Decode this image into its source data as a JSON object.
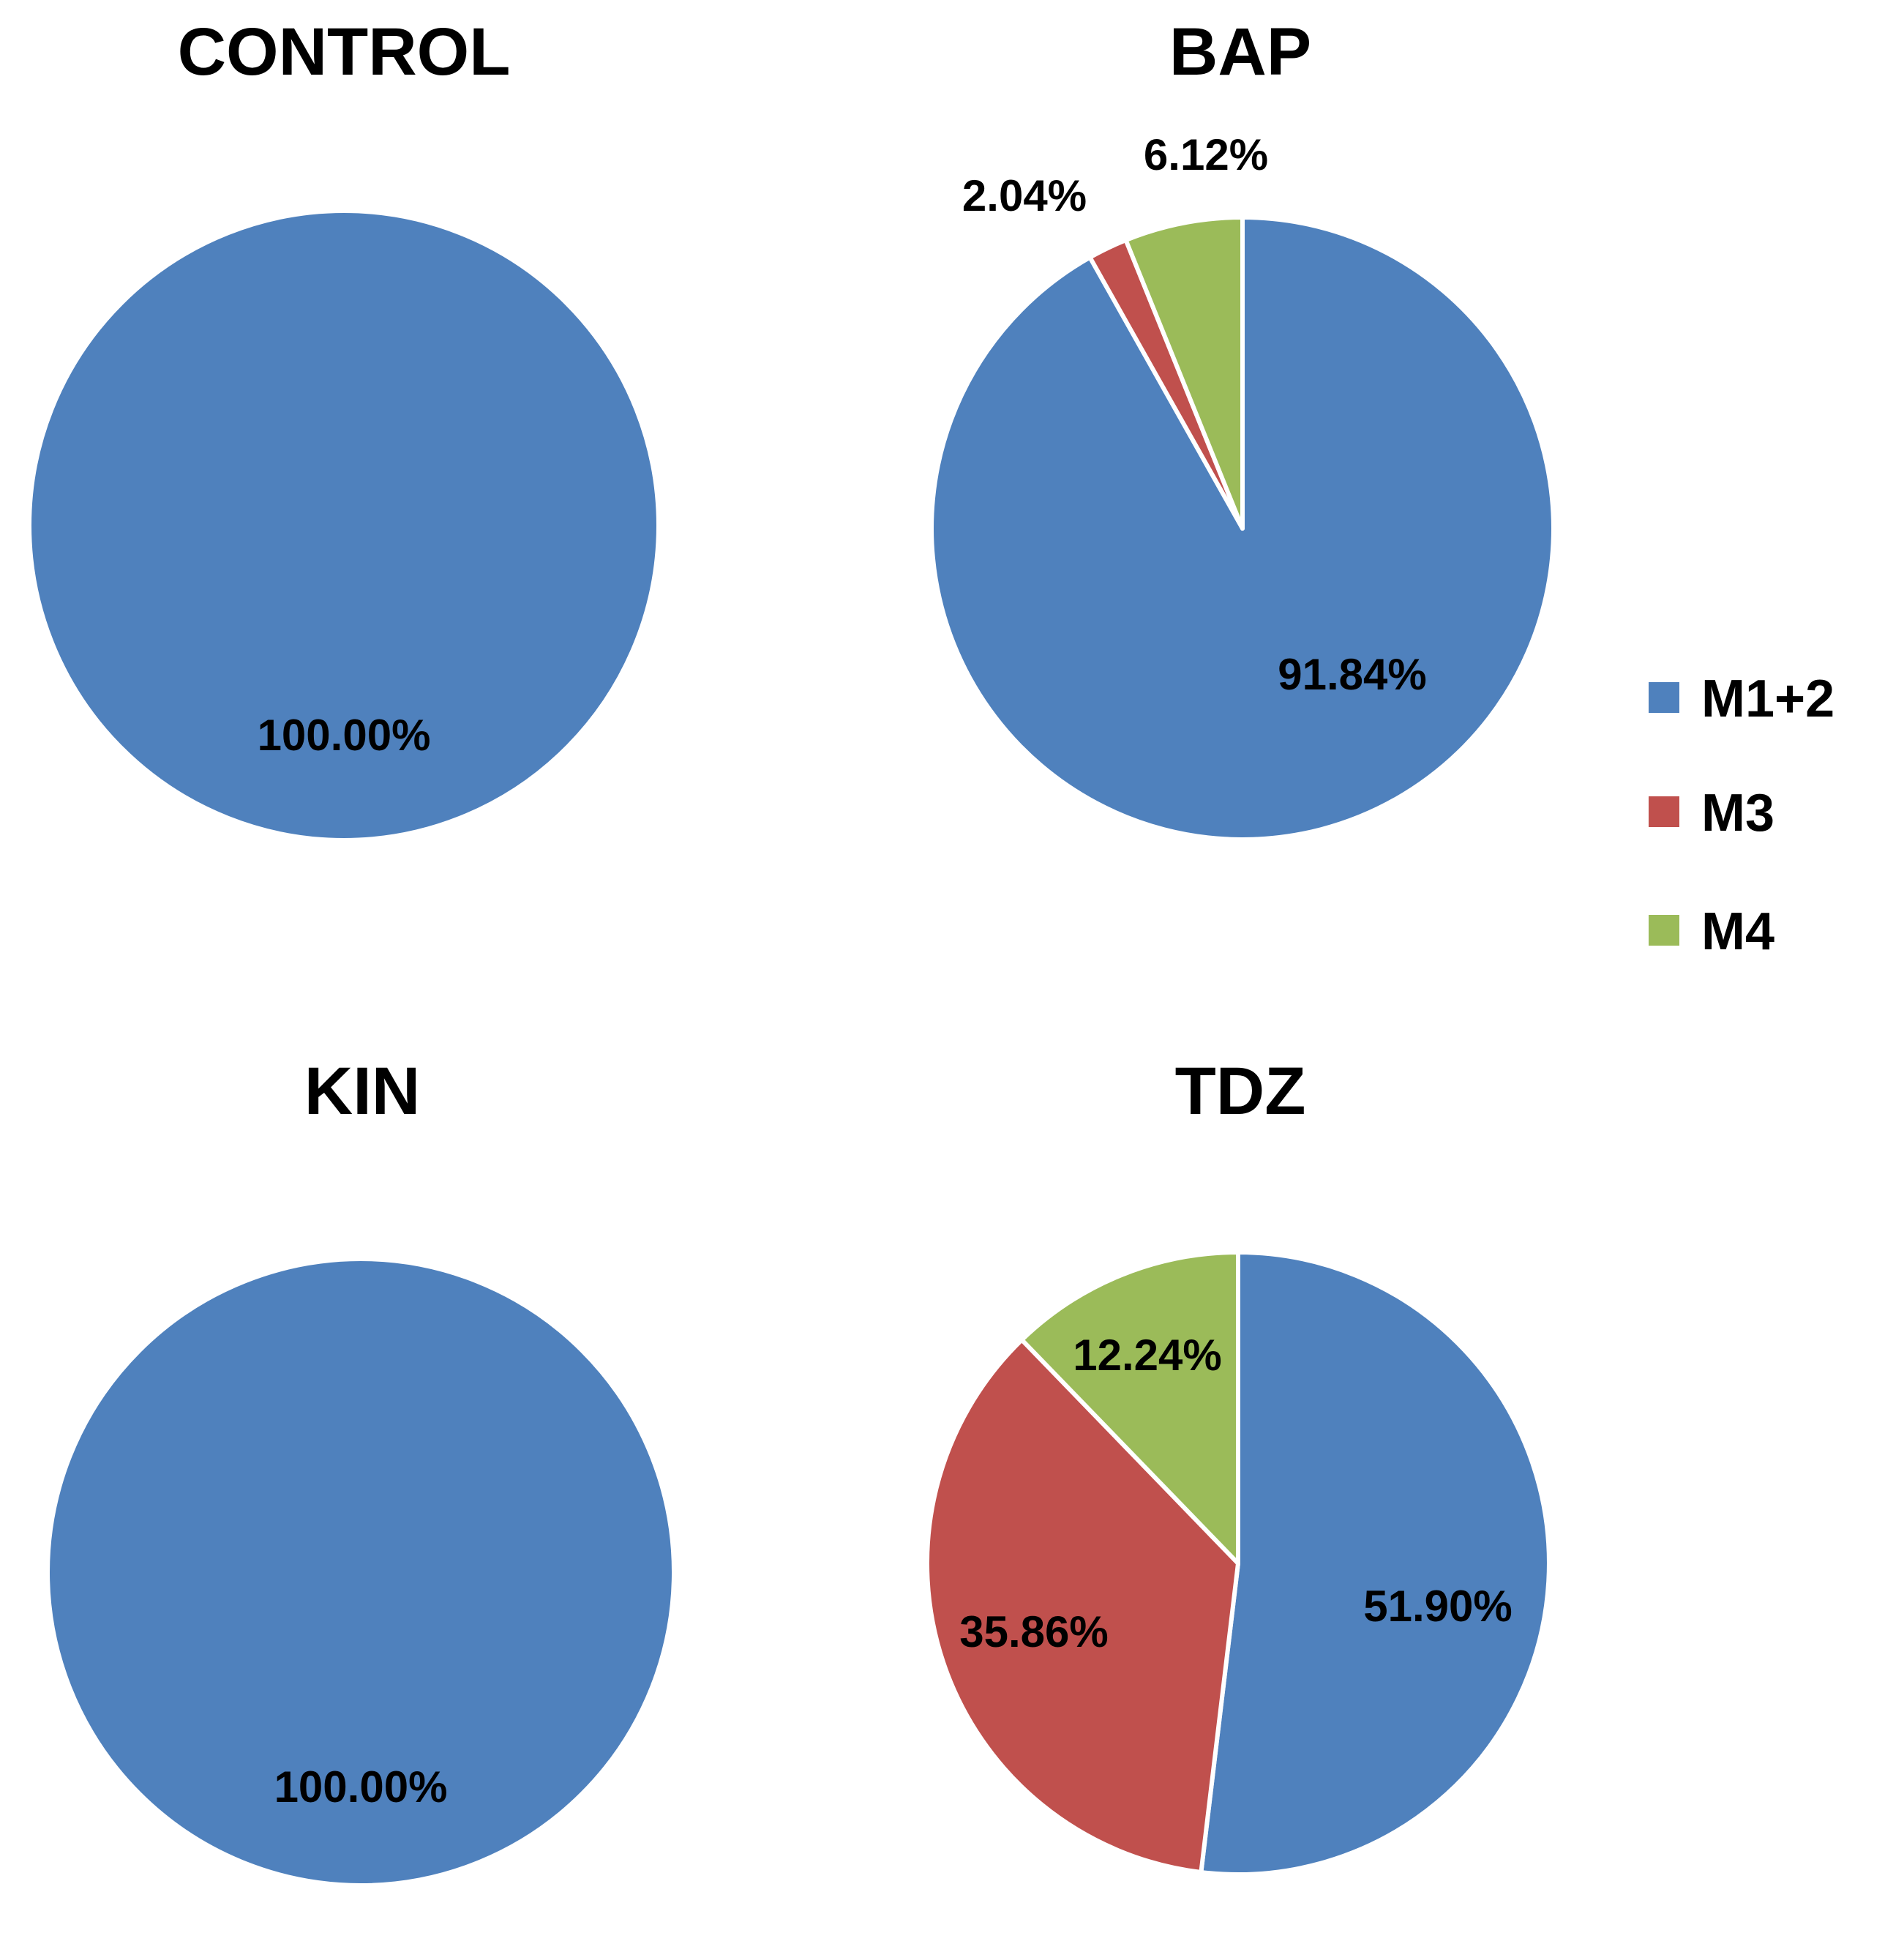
{
  "chart_data": [
    {
      "type": "pie",
      "title": "CONTROL",
      "slices": [
        {
          "name": "M1+2",
          "value": 100.0,
          "label": "100.00%"
        }
      ]
    },
    {
      "type": "pie",
      "title": "BAP",
      "slices": [
        {
          "name": "M1+2",
          "value": 91.84,
          "label": "91.84%"
        },
        {
          "name": "M3",
          "value": 2.04,
          "label": "2.04%"
        },
        {
          "name": "M4",
          "value": 6.12,
          "label": "6.12%"
        }
      ]
    },
    {
      "type": "pie",
      "title": "KIN",
      "slices": [
        {
          "name": "M1+2",
          "value": 100.0,
          "label": "100.00%"
        }
      ]
    },
    {
      "type": "pie",
      "title": "TDZ",
      "slices": [
        {
          "name": "M1+2",
          "value": 51.9,
          "label": "51.90%"
        },
        {
          "name": "M3",
          "value": 35.86,
          "label": "35.86%"
        },
        {
          "name": "M4",
          "value": 12.24,
          "label": "12.24%"
        }
      ]
    }
  ],
  "legend": {
    "placement": "right",
    "items": [
      {
        "name": "M1+2",
        "color": "#4F81BD"
      },
      {
        "name": "M3",
        "color": "#C0504D"
      },
      {
        "name": "M4",
        "color": "#9BBB59"
      }
    ]
  }
}
